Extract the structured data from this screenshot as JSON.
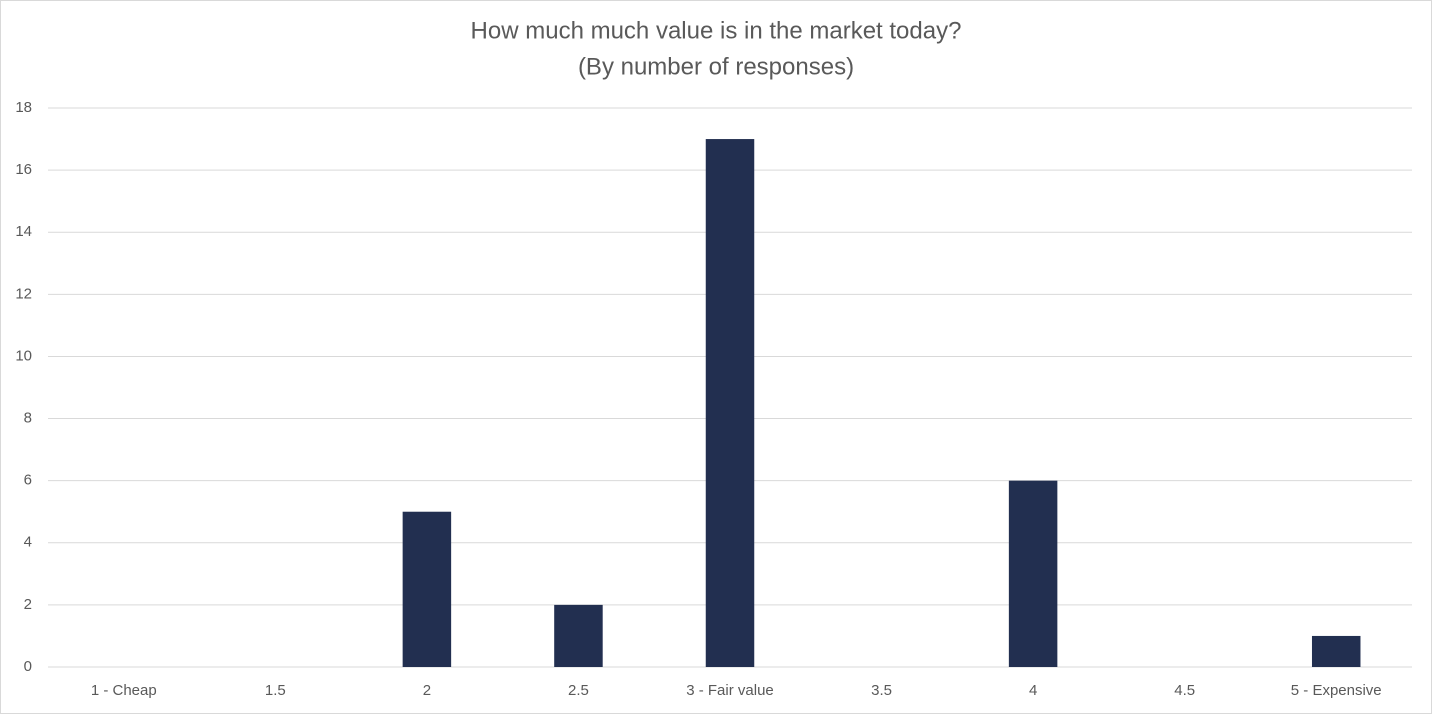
{
  "chart_data": {
    "type": "bar",
    "title": "How much much value is in the market today?",
    "subtitle": "(By number of responses)",
    "categories": [
      "1 - Cheap",
      "1.5",
      "2",
      "2.5",
      "3 - Fair value",
      "3.5",
      "4",
      "4.5",
      "5 - Expensive"
    ],
    "values": [
      0,
      0,
      5,
      2,
      17,
      0,
      6,
      0,
      1
    ],
    "color": "#222f50",
    "ylim": [
      0,
      18
    ],
    "yticks": [
      0,
      2,
      4,
      6,
      8,
      10,
      12,
      14,
      16,
      18
    ],
    "grid": true
  }
}
